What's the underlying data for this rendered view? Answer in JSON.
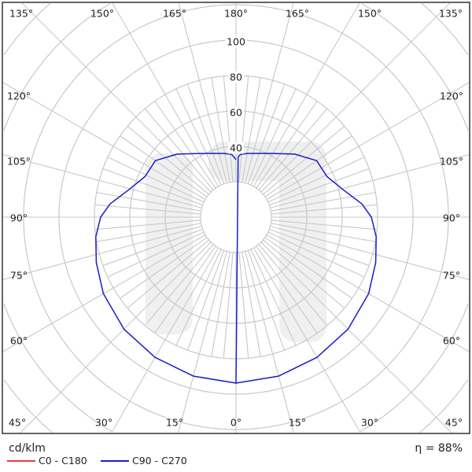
{
  "chart_data": {
    "type": "polar",
    "unit_label": "cd/klm",
    "efficiency_label": "η = 88%",
    "radial_ticks": [
      40,
      60,
      80,
      100
    ],
    "radial_grid_step": 20,
    "angle_labels": {
      "top": [
        "135°",
        "150°",
        "165°",
        "180°",
        "165°",
        "150°",
        "135°"
      ],
      "left": [
        "120°",
        "105°",
        "90°",
        "75°",
        "60°"
      ],
      "right": [
        "120°",
        "105°",
        "90°",
        "75°",
        "60°"
      ],
      "bottom": [
        "45°",
        "30°",
        "15°",
        "0°",
        "15°",
        "30°",
        "45°"
      ]
    },
    "legend": [
      {
        "name": "C0 - C180",
        "color": "#e83a3a"
      },
      {
        "name": "C90 - C270",
        "color": "#1c1cc8"
      }
    ],
    "series": [
      {
        "name": "C90 - C270",
        "color": "#1c1cc8",
        "symmetric": true,
        "gamma": [
          0,
          15,
          30,
          45,
          60,
          72,
          82,
          90,
          96,
          104,
          114,
          125,
          137,
          150,
          160,
          170,
          176,
          178,
          180
        ],
        "values": [
          93.8,
          93,
          91.5,
          89.5,
          86.5,
          83,
          80,
          76.5,
          71.5,
          62.8,
          56.3,
          55.6,
          48.7,
          41.5,
          38.3,
          36.5,
          35.5,
          34,
          32.4
        ]
      }
    ],
    "grid": true
  }
}
